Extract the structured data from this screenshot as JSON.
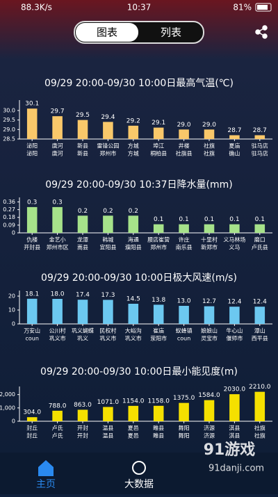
{
  "status_bar": {
    "speed": "88.3K/s",
    "time": "10:37",
    "battery": "81%"
  },
  "tabs": [
    "图表",
    "列表"
  ],
  "chart_data": [
    {
      "type": "bar",
      "title": "09/29 20:00-09/30 10:00日最高气温(℃)",
      "color": "#f9c86a",
      "categories": [
        [
          "泌阳",
          "泌阳"
        ],
        [
          "唐河",
          "唐河"
        ],
        [
          "新县",
          "新县"
        ],
        [
          "雷锋公园",
          "郑州市"
        ],
        [
          "方城",
          "方城"
        ],
        [
          "埠江",
          "桐柏县"
        ],
        [
          "井楼",
          "社旗县"
        ],
        [
          "社旗",
          "社旗"
        ],
        [
          "夏庙",
          "确山"
        ],
        [
          "驻马店",
          "驻马店"
        ]
      ],
      "values": [
        30.1,
        29.7,
        29.5,
        29.4,
        29.2,
        29.1,
        29.0,
        29.0,
        28.7,
        28.7
      ],
      "value_labels": [
        "30.1",
        "29.7",
        "29.5",
        "29.4",
        "29.2",
        "29.1",
        "29.0",
        "29.0",
        "28.7",
        "28.7"
      ],
      "ylim": [
        28.5,
        30.4
      ],
      "yticks": [
        28.5,
        {
          "value": 29,
          "label": "29.0"
        },
        29.5,
        {
          "value": 30,
          "label": "30.0"
        }
      ]
    },
    {
      "type": "bar",
      "title": "09/29 20:00-09/30 10:37日降水量(mm)",
      "color": "#a6e28a",
      "categories": [
        [
          "仇楼",
          "开封县"
        ],
        [
          "金艺小",
          "郑州市区"
        ],
        [
          "龙潭",
          "嵩县"
        ],
        [
          "韩城",
          "宜阳县"
        ],
        [
          "海通",
          "濮阳县"
        ],
        [
          "腰店崔营",
          "郑州市"
        ],
        [
          "许庄",
          "南乐县"
        ],
        [
          "十里村",
          "新郑市"
        ],
        [
          "义马林场",
          "义马"
        ],
        [
          "磨口",
          "卢氏县"
        ]
      ],
      "values": [
        0.3,
        0.3,
        0.2,
        0.2,
        0.2,
        0.1,
        0.1,
        0.1,
        0.1,
        0.1
      ],
      "ylim": [
        0,
        0.38
      ],
      "yticks": [
        0,
        0.09,
        0.18,
        0.27,
        0.36
      ]
    },
    {
      "type": "bar",
      "title": "09/29 20:00-09/30 10:00日极大风速(m/s)",
      "color": "#6cc8f0",
      "categories": [
        [
          "万安山",
          "coun"
        ],
        [
          "公川村",
          "巩义市"
        ],
        [
          "巩义蝴蝶",
          "巩义"
        ],
        [
          "民权村",
          "巩义市"
        ],
        [
          "大峪沟",
          "巩义市"
        ],
        [
          "崔庙",
          "荥阳市"
        ],
        [
          "蚁蜂镇",
          "coun"
        ],
        [
          "娘娘山",
          "灵宝市"
        ],
        [
          "牛心山",
          "偃师市"
        ],
        [
          "潭山",
          "西平县"
        ]
      ],
      "values": [
        18.1,
        18.0,
        17.4,
        17.3,
        14.5,
        13.8,
        13.0,
        12.7,
        12.4,
        12.4
      ],
      "value_labels": [
        "18.1",
        "18.0",
        "17.4",
        "17.3",
        "14.5",
        "13.8",
        "13.0",
        "12.7",
        "12.4",
        "12.4"
      ],
      "ylim": [
        0,
        22
      ],
      "yticks": [
        0,
        10,
        20
      ]
    },
    {
      "type": "bar",
      "title": "09/29 20:00-09/30 10:00日最小能见度(m)",
      "color": "#f5e000",
      "categories": [
        [
          "封丘",
          "封丘"
        ],
        [
          "卢氏",
          "卢氏"
        ],
        [
          "开封",
          "开封"
        ],
        [
          "温县",
          "温县"
        ],
        [
          "夏邑",
          "夏邑"
        ],
        [
          "睢县",
          "睢县"
        ],
        [
          "舞阳",
          "舞阳"
        ],
        [
          "济源",
          "济源"
        ],
        [
          "淇县",
          "淇县"
        ],
        [
          "社旗",
          "社旗"
        ]
      ],
      "values": [
        304,
        788,
        863,
        1071,
        1154,
        1158,
        1375,
        1584,
        2030,
        2210
      ],
      "value_labels": [
        "304.0",
        "788.0",
        "863.0",
        "1071.0",
        "1154.0",
        "1158.0",
        "1375.0",
        "1584.0",
        "2030.0",
        "2210.0"
      ],
      "ylim": [
        0,
        2400
      ],
      "yticks": [
        0,
        {
          "value": 1000,
          "label": "1,000"
        },
        {
          "value": 2000,
          "label": "2,000"
        }
      ]
    }
  ],
  "nav": [
    "主页",
    "大数据"
  ],
  "watermark": [
    "91游戏",
    "91danji.com"
  ]
}
